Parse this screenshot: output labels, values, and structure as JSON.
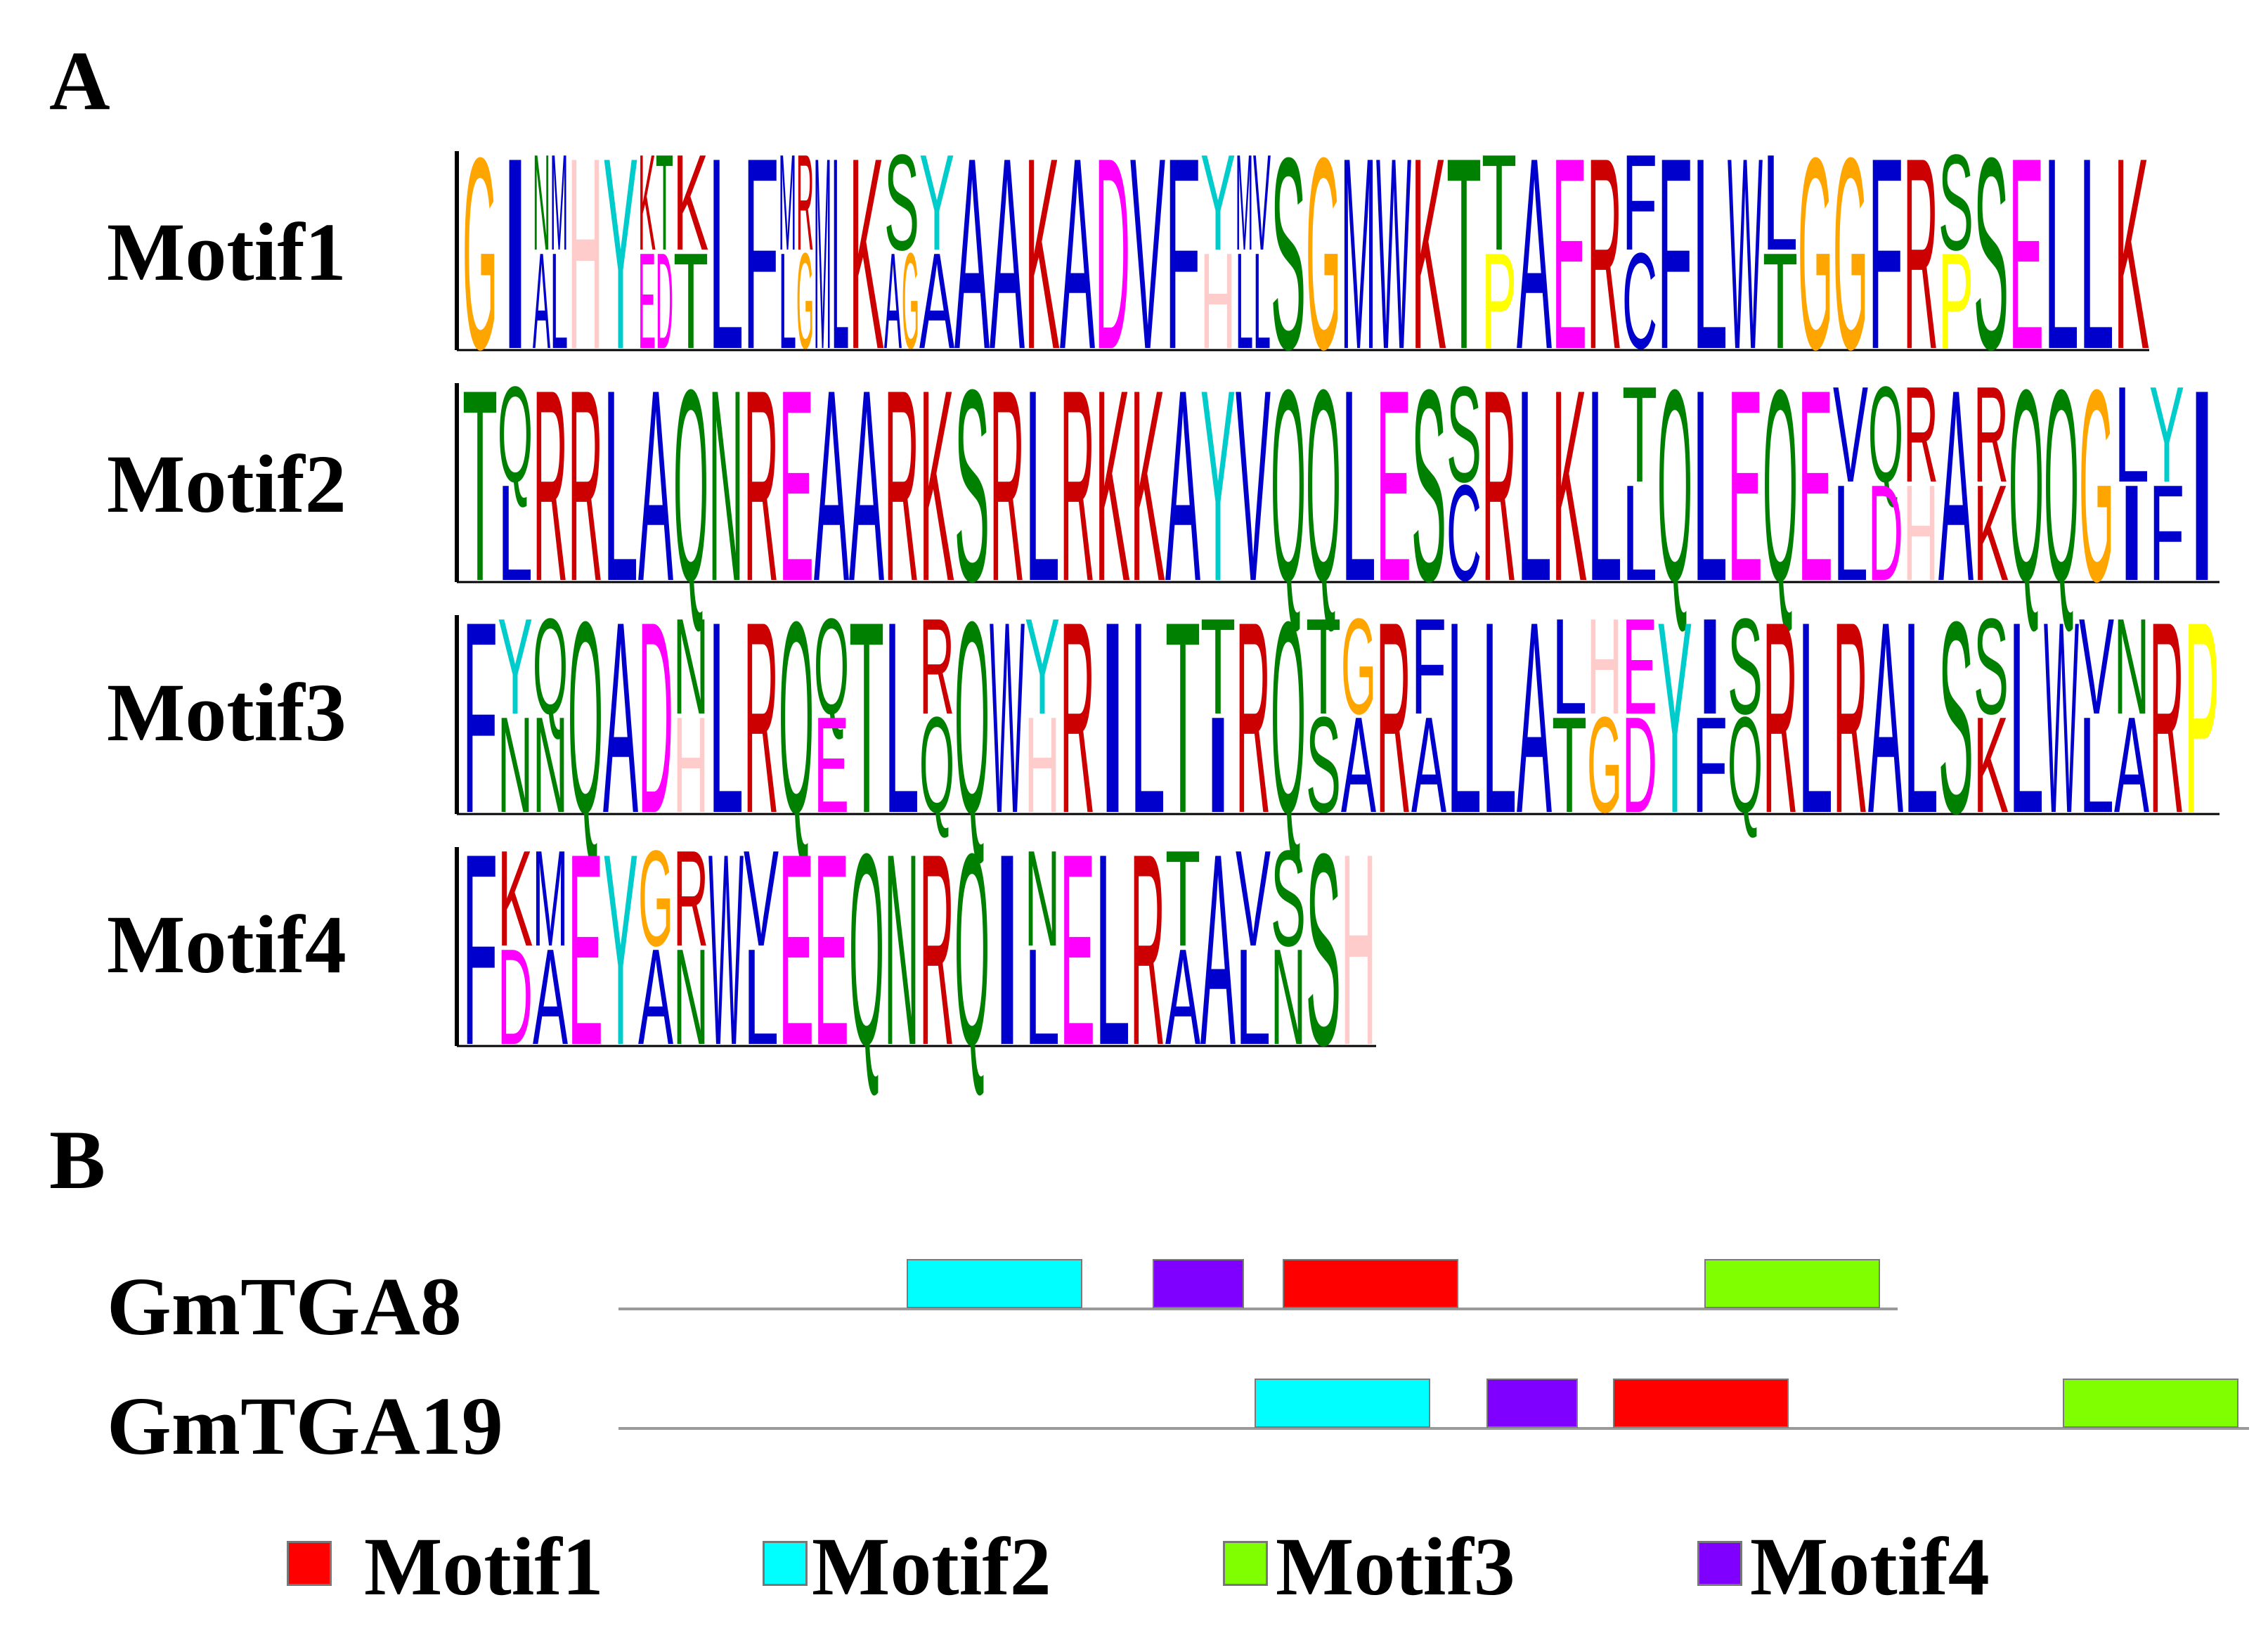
{
  "panels": {
    "a": "A",
    "b": "B"
  },
  "colors": {
    "F": "#0000cc",
    "I": "#0000cc",
    "L": "#0000cc",
    "M": "#0000cc",
    "V": "#0000cc",
    "W": "#0000cc",
    "K": "#cc0000",
    "R": "#cc0000",
    "H": "#ffcccc",
    "D": "#ff00ff",
    "E": "#ff00ff",
    "S": "#008000",
    "T": "#008000",
    "N": "#008000",
    "Q": "#008000",
    "A": "#0000cc",
    "C": "#0000cc",
    "G": "#ffa500",
    "P": "#ffff00",
    "Y": "#00cccc"
  },
  "logos": [
    {
      "name": "Motif1",
      "columns": [
        "G",
        "I",
        "NM/AL",
        "H",
        "Y",
        "KT/ED",
        "K/T",
        "L",
        "F",
        "MR/LG",
        "ML",
        "K",
        "S/AG",
        "Y/A",
        "A",
        "A",
        "K",
        "A",
        "D",
        "V",
        "F",
        "Y/H",
        "MV/LL",
        "S",
        "G",
        "M",
        "W",
        "K",
        "T",
        "T/P",
        "A",
        "E",
        "R",
        "F/C",
        "F",
        "L",
        "W",
        "L/T",
        "G",
        "G",
        "F",
        "R",
        "S/P",
        "S",
        "E",
        "L",
        "L",
        "K"
      ]
    },
    {
      "name": "Motif2",
      "columns": [
        "T",
        "Q/L",
        "R",
        "R",
        "L",
        "A",
        "Q",
        "N",
        "R",
        "E",
        "A",
        "A",
        "R",
        "K",
        "S",
        "R",
        "L",
        "R",
        "K",
        "K",
        "A",
        "Y",
        "V",
        "Q",
        "Q",
        "L",
        "E",
        "S",
        "S/C",
        "R",
        "L",
        "K",
        "L",
        "T/L",
        "Q",
        "L",
        "E",
        "Q",
        "E",
        "V/L",
        "Q/D",
        "R/H",
        "A",
        "R/K",
        "Q",
        "Q",
        "G",
        "L/I",
        "Y/F",
        "I"
      ]
    },
    {
      "name": "Motif3",
      "columns": [
        "F",
        "Y/N",
        "Q/N",
        "Q",
        "A",
        "D",
        "N/H",
        "L",
        "R",
        "Q",
        "Q/E",
        "T",
        "L",
        "R/Q",
        "Q",
        "W",
        "Y/H",
        "R",
        "I",
        "L",
        "T",
        "T/I",
        "R",
        "Q",
        "T/S",
        "G/A",
        "R",
        "F/A",
        "L",
        "L",
        "A",
        "L/T",
        "H/G",
        "E/D",
        "Y",
        "I/F",
        "S/Q",
        "R",
        "L",
        "R",
        "A",
        "L",
        "S",
        "S/K",
        "L",
        "W",
        "V/L",
        "N/A",
        "R",
        "P"
      ]
    },
    {
      "name": "Motif4",
      "columns": [
        "F",
        "K/D",
        "M/A",
        "E",
        "Y",
        "G/A",
        "R/N",
        "W",
        "V/L",
        "E",
        "E",
        "Q",
        "N",
        "R",
        "Q",
        "I",
        "N/L",
        "E",
        "L",
        "R",
        "T/A",
        "A",
        "V/L",
        "S/N",
        "S",
        "H"
      ]
    }
  ],
  "genes": [
    {
      "name": "GmTGA8"
    },
    {
      "name": "GmTGA19"
    }
  ],
  "legend": [
    {
      "label": "Motif1",
      "color": "#ff0000"
    },
    {
      "label": "Motif2",
      "color": "#00ffff"
    },
    {
      "label": "Motif3",
      "color": "#80ff00"
    },
    {
      "label": "Motif4",
      "color": "#8000ff"
    }
  ]
}
